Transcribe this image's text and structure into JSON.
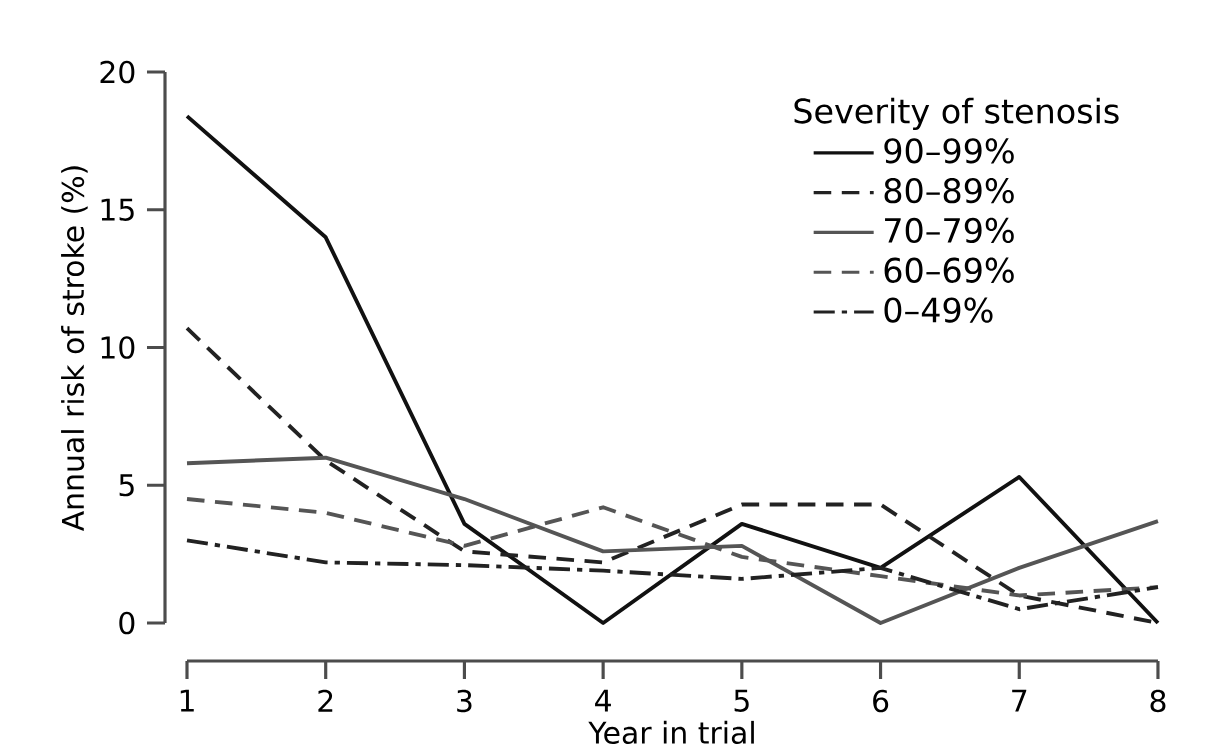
{
  "chart_data": {
    "type": "line",
    "xlabel": "Year in trial",
    "ylabel": "Annual risk of stroke (%)",
    "legend_title": "Severity of stenosis",
    "x": [
      1,
      2,
      3,
      4,
      5,
      6,
      7,
      8
    ],
    "series": [
      {
        "name": "90–99%",
        "color": "#111111",
        "line_style": "solid",
        "values": [
          18.4,
          14.0,
          3.6,
          0,
          3.6,
          2.0,
          5.3,
          0
        ]
      },
      {
        "name": "80–89%",
        "color": "#222222",
        "line_style": "dashed",
        "values": [
          10.7,
          5.9,
          2.6,
          2.2,
          4.3,
          4.3,
          1.0,
          0
        ]
      },
      {
        "name": "70–79%",
        "color": "#555555",
        "line_style": "solid",
        "values": [
          5.8,
          6.0,
          4.5,
          2.6,
          2.8,
          0,
          2.0,
          3.7
        ]
      },
      {
        "name": "60–69%",
        "color": "#555555",
        "line_style": "dashed",
        "values": [
          4.5,
          4.0,
          2.8,
          4.2,
          2.4,
          1.7,
          1.0,
          1.3
        ]
      },
      {
        "name": "0–49%",
        "color": "#222222",
        "line_style": "dashdot",
        "values": [
          3.0,
          2.2,
          2.1,
          1.9,
          1.6,
          2.0,
          0.5,
          1.3
        ]
      }
    ],
    "xlim": [
      1,
      8
    ],
    "xticks": [
      1,
      2,
      3,
      4,
      5,
      6,
      7,
      8
    ],
    "ylim": [
      0,
      20
    ],
    "yticks": [
      0,
      5,
      10,
      15,
      20
    ],
    "grid": false,
    "legend": "top right",
    "marker": "none"
  }
}
